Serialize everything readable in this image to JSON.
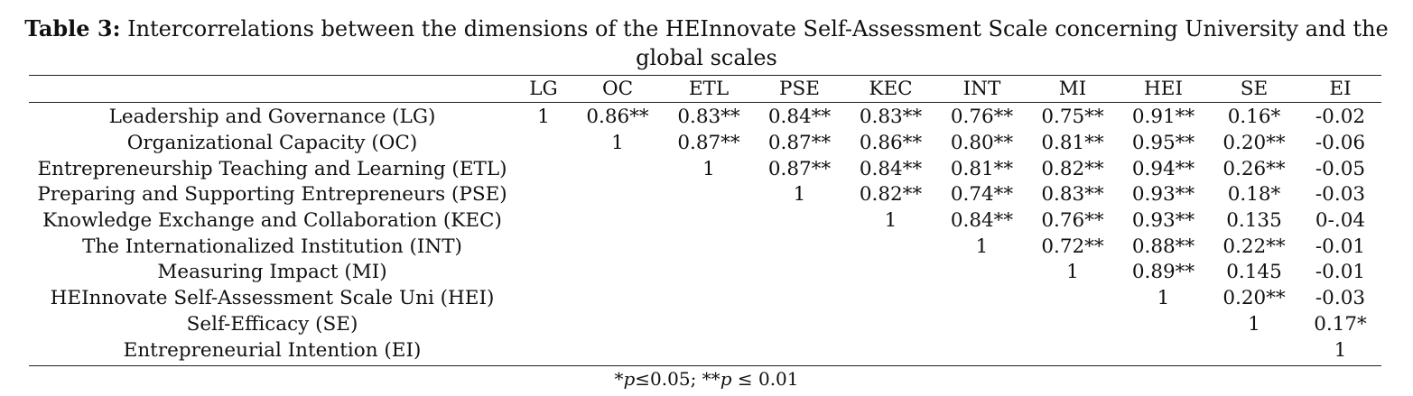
{
  "caption": {
    "label": "Table 3:",
    "text": " Intercorrelations between the dimensions of the HEInnovate Self-Assessment Scale concerning University and the",
    "text_line2": "global scales"
  },
  "columns": [
    "",
    "LG",
    "OC",
    "ETL",
    "PSE",
    "KEC",
    "INT",
    "MI",
    "HEI",
    "SE",
    "EI"
  ],
  "rows": [
    {
      "label": "Leadership and Governance (LG)",
      "cells": [
        "1",
        "0.86**",
        "0.83**",
        "0.84**",
        "0.83**",
        "0.76**",
        "0.75**",
        "0.91**",
        "0.16*",
        "-0.02"
      ]
    },
    {
      "label": "Organizational Capacity (OC)",
      "cells": [
        "",
        "1",
        "0.87**",
        "0.87**",
        "0.86**",
        "0.80**",
        "0.81**",
        "0.95**",
        "0.20**",
        "-0.06"
      ]
    },
    {
      "label": "Entrepreneurship Teaching and Learning (ETL)",
      "cells": [
        "",
        "",
        "1",
        "0.87**",
        "0.84**",
        "0.81**",
        "0.82**",
        "0.94**",
        "0.26**",
        "-0.05"
      ]
    },
    {
      "label": "Preparing and Supporting Entrepreneurs (PSE)",
      "cells": [
        "",
        "",
        "",
        "1",
        "0.82**",
        "0.74**",
        "0.83**",
        "0.93**",
        "0.18*",
        "-0.03"
      ]
    },
    {
      "label": "Knowledge Exchange and Collaboration (KEC)",
      "cells": [
        "",
        "",
        "",
        "",
        "1",
        "0.84**",
        "0.76**",
        "0.93**",
        "0.135",
        "0-.04"
      ]
    },
    {
      "label": "The Internationalized Institution (INT)",
      "cells": [
        "",
        "",
        "",
        "",
        "",
        "1",
        "0.72**",
        "0.88**",
        "0.22**",
        "-0.01"
      ]
    },
    {
      "label": "Measuring Impact (MI)",
      "cells": [
        "",
        "",
        "",
        "",
        "",
        "",
        "1",
        "0.89**",
        "0.145",
        "-0.01"
      ]
    },
    {
      "label": "HEInnovate Self-Assessment Scale Uni (HEI)",
      "cells": [
        "",
        "",
        "",
        "",
        "",
        "",
        "",
        "1",
        "0.20**",
        "-0.03"
      ]
    },
    {
      "label": "Self-Efficacy (SE)",
      "cells": [
        "",
        "",
        "",
        "",
        "",
        "",
        "",
        "",
        "1",
        "0.17*"
      ]
    },
    {
      "label": "Entrepreneurial Intention (EI)",
      "cells": [
        "",
        "",
        "",
        "",
        "",
        "",
        "",
        "",
        "",
        "1"
      ]
    }
  ],
  "note": {
    "star1": "*",
    "p1": "p",
    "t1": "≤0.05; **",
    "p2": "p",
    "t2": " ≤ 0.01"
  }
}
